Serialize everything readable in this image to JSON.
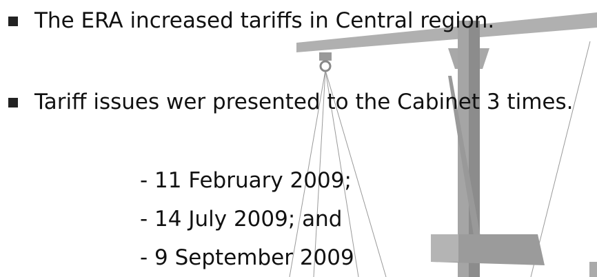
{
  "bullets": [
    "The ERA increased tariffs in Central region.",
    "Tariff issues wer presented to the Cabinet 3 times."
  ],
  "dates": [
    "- 11 February 2009;",
    "- 14 July 2009; and",
    "- 9 September 2009"
  ]
}
